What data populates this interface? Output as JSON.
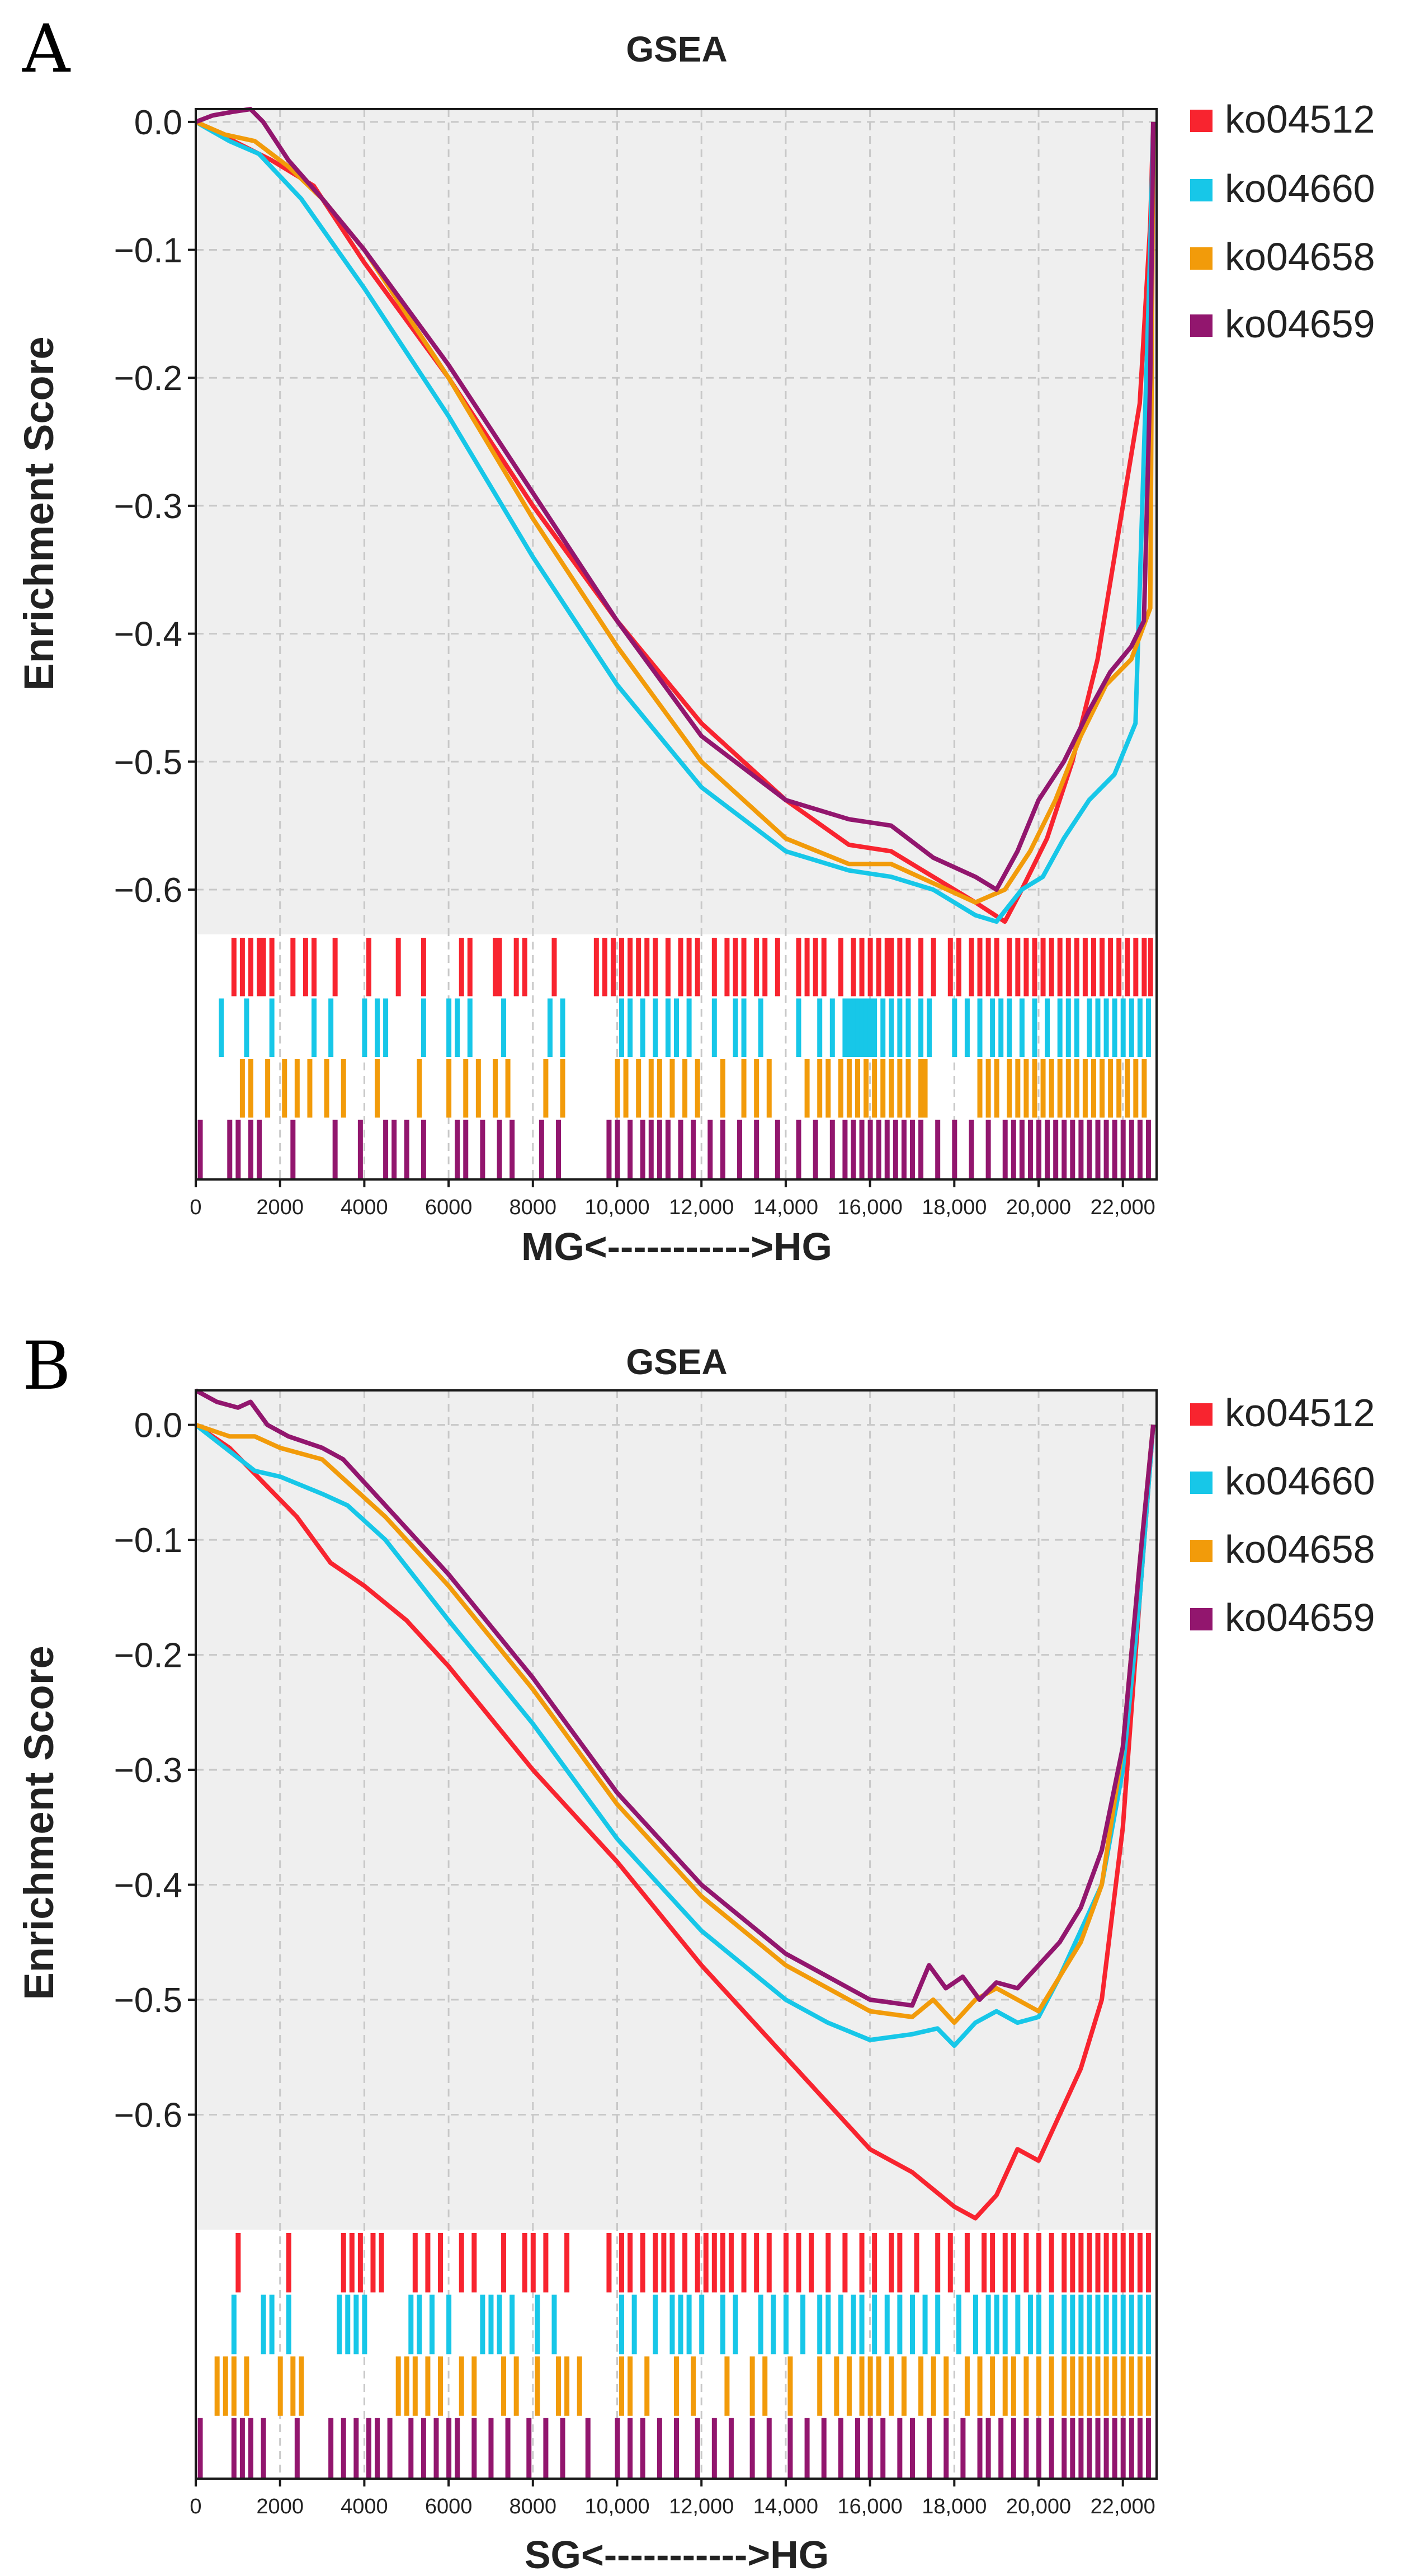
{
  "colors": {
    "ko04512": "#f8242f",
    "ko04660": "#17c7e8",
    "ko04658": "#f29b0a",
    "ko04659": "#92166e",
    "plot_bg": "#efefef",
    "grid": "#c8c8c8"
  },
  "chart_data": [
    {
      "type": "line",
      "panel_label": "A",
      "title": "GSEA",
      "xlabel": "MG<----------->HG",
      "ylabel": "Enrichment Score",
      "xlim": [
        0,
        22800
      ],
      "ylim": [
        -0.635,
        0.01
      ],
      "grid": true,
      "legend_position": "right",
      "x_ticks": [
        0,
        2000,
        4000,
        6000,
        8000,
        10000,
        12000,
        14000,
        16000,
        18000,
        20000,
        22000
      ],
      "x_tick_labels": [
        "0",
        "2000",
        "4000",
        "6000",
        "8000",
        "10,000",
        "12,000",
        "14,000",
        "16,000",
        "18,000",
        "20,000",
        "22,000"
      ],
      "y_ticks": [
        0.0,
        -0.1,
        -0.2,
        -0.3,
        -0.4,
        -0.5,
        -0.6
      ],
      "y_tick_labels": [
        "0.0",
        "−0.1",
        "−0.2",
        "−0.3",
        "−0.4",
        "−0.5",
        "−0.6"
      ],
      "series": [
        {
          "name": "ko04512",
          "x": [
            0,
            600,
            1200,
            1800,
            2800,
            4000,
            6000,
            8000,
            10000,
            12000,
            14000,
            15500,
            16500,
            17500,
            18500,
            19200,
            19600,
            20200,
            20800,
            21400,
            21900,
            22400,
            22650,
            22720
          ],
          "y": [
            0.0,
            -0.01,
            -0.02,
            -0.03,
            -0.05,
            -0.11,
            -0.2,
            -0.3,
            -0.39,
            -0.47,
            -0.53,
            -0.565,
            -0.57,
            -0.59,
            -0.61,
            -0.625,
            -0.6,
            -0.56,
            -0.5,
            -0.42,
            -0.32,
            -0.22,
            -0.08,
            0.0
          ]
        },
        {
          "name": "ko04660",
          "x": [
            0,
            800,
            1500,
            2500,
            4000,
            6000,
            8000,
            10000,
            12000,
            14000,
            15500,
            16500,
            17500,
            18500,
            19000,
            19600,
            20100,
            20600,
            21200,
            21800,
            22300,
            22650,
            22720
          ],
          "y": [
            0.0,
            -0.015,
            -0.025,
            -0.06,
            -0.13,
            -0.23,
            -0.34,
            -0.44,
            -0.52,
            -0.57,
            -0.585,
            -0.59,
            -0.6,
            -0.62,
            -0.625,
            -0.6,
            -0.59,
            -0.56,
            -0.53,
            -0.51,
            -0.47,
            -0.1,
            0.0
          ]
        },
        {
          "name": "ko04658",
          "x": [
            0,
            700,
            1400,
            2200,
            3000,
            4000,
            6000,
            8000,
            10000,
            12000,
            14000,
            15500,
            16500,
            17500,
            18500,
            19200,
            19800,
            20400,
            21000,
            21600,
            22200,
            22650,
            22720
          ],
          "y": [
            0.0,
            -0.01,
            -0.015,
            -0.035,
            -0.06,
            -0.1,
            -0.2,
            -0.31,
            -0.41,
            -0.5,
            -0.56,
            -0.58,
            -0.58,
            -0.595,
            -0.61,
            -0.6,
            -0.57,
            -0.53,
            -0.48,
            -0.44,
            -0.42,
            -0.38,
            0.0
          ]
        },
        {
          "name": "ko04659",
          "x": [
            0,
            400,
            900,
            1300,
            1600,
            2200,
            3000,
            4000,
            6000,
            8000,
            10000,
            12000,
            14000,
            15500,
            16500,
            17500,
            18500,
            19000,
            19500,
            20000,
            20600,
            21200,
            21700,
            22200,
            22500,
            22650,
            22720
          ],
          "y": [
            0.0,
            0.005,
            0.008,
            0.01,
            0.0,
            -0.03,
            -0.06,
            -0.1,
            -0.19,
            -0.29,
            -0.39,
            -0.48,
            -0.53,
            -0.545,
            -0.55,
            -0.575,
            -0.59,
            -0.6,
            -0.57,
            -0.53,
            -0.5,
            -0.46,
            -0.43,
            -0.41,
            -0.39,
            -0.2,
            0.0
          ]
        }
      ],
      "hit_markers": {
        "ko04512": [
          900,
          1100,
          1300,
          1500,
          1600,
          1800,
          2300,
          2600,
          2800,
          3300,
          4100,
          4800,
          5400,
          6300,
          6500,
          7100,
          7200,
          7600,
          7800,
          8500,
          9500,
          9700,
          9900,
          10100,
          10300,
          10500,
          10700,
          10900,
          11200,
          11500,
          11700,
          11900,
          12300,
          12600,
          12800,
          13000,
          13300,
          13500,
          13800,
          14300,
          14500,
          14700,
          14900,
          15300,
          15600,
          15800,
          16000,
          16200,
          16400,
          16500,
          16700,
          16900,
          17200,
          17500,
          17900,
          18100,
          18400,
          18600,
          18800,
          19000,
          19300,
          19500,
          19700,
          19900,
          20100,
          20300,
          20500,
          20700,
          20900,
          21100,
          21300,
          21500,
          21700,
          21900,
          22100,
          22300,
          22500,
          22650
        ],
        "ko04660": [
          600,
          1200,
          1800,
          2800,
          3200,
          4000,
          4300,
          4500,
          5400,
          6000,
          6200,
          6500,
          7300,
          8400,
          8700,
          10100,
          10300,
          10600,
          10900,
          11200,
          11400,
          11700,
          12300,
          12800,
          13000,
          13400,
          14300,
          14800,
          15100,
          15400,
          15500,
          15600,
          15700,
          15800,
          15900,
          16000,
          16100,
          16300,
          16500,
          16700,
          16900,
          17200,
          17400,
          18000,
          18300,
          18600,
          18900,
          19100,
          19300,
          19600,
          19900,
          20200,
          20500,
          20700,
          20900,
          21200,
          21400,
          21600,
          21800,
          22000,
          22200,
          22400,
          22600
        ],
        "ko04658": [
          1100,
          1300,
          1700,
          2100,
          2400,
          2700,
          3100,
          3500,
          4300,
          5300,
          6000,
          6400,
          6700,
          7100,
          7400,
          8300,
          8700,
          10000,
          10200,
          10500,
          10800,
          11000,
          11300,
          11600,
          11900,
          12500,
          13000,
          13300,
          13600,
          14500,
          14800,
          15000,
          15300,
          15500,
          15700,
          15900,
          16100,
          16300,
          16500,
          16700,
          16900,
          17200,
          17300,
          18600,
          18800,
          19000,
          19300,
          19500,
          19700,
          19900,
          20100,
          20300,
          20500,
          20700,
          20900,
          21100,
          21300,
          21500,
          21700,
          21900,
          22100,
          22300,
          22500
        ],
        "ko04659": [
          100,
          800,
          1000,
          1300,
          1500,
          2300,
          3300,
          3900,
          4500,
          4700,
          5000,
          5400,
          6200,
          6400,
          6800,
          7200,
          7500,
          8200,
          8600,
          9800,
          10000,
          10300,
          10600,
          10800,
          11000,
          11200,
          11500,
          11800,
          12200,
          12500,
          12900,
          13300,
          13800,
          14300,
          14700,
          15100,
          15400,
          15600,
          15800,
          16000,
          16200,
          16400,
          16600,
          16800,
          17000,
          17200,
          17600,
          18000,
          18400,
          18800,
          19200,
          19400,
          19600,
          19800,
          20000,
          20200,
          20400,
          20600,
          20800,
          21000,
          21200,
          21400,
          21600,
          21800,
          22000,
          22200,
          22400,
          22600
        ]
      }
    },
    {
      "type": "line",
      "panel_label": "B",
      "title": "GSEA",
      "xlabel": "SG<----------->HG",
      "ylabel": "Enrichment Score",
      "xlim": [
        0,
        22800
      ],
      "ylim": [
        -0.7,
        0.03
      ],
      "grid": true,
      "legend_position": "right",
      "x_ticks": [
        0,
        2000,
        4000,
        6000,
        8000,
        10000,
        12000,
        14000,
        16000,
        18000,
        20000,
        22000
      ],
      "x_tick_labels": [
        "0",
        "2000",
        "4000",
        "6000",
        "8000",
        "10,000",
        "12,000",
        "14,000",
        "16,000",
        "18,000",
        "20,000",
        "22,000"
      ],
      "y_ticks": [
        0.0,
        -0.1,
        -0.2,
        -0.3,
        -0.4,
        -0.5,
        -0.6
      ],
      "y_tick_labels": [
        "0.0",
        "−0.1",
        "−0.2",
        "−0.3",
        "−0.4",
        "−0.5",
        "−0.6"
      ],
      "series": [
        {
          "name": "ko04512",
          "x": [
            0,
            800,
            1600,
            2400,
            3200,
            3800,
            4000,
            5000,
            6000,
            8000,
            10000,
            12000,
            14000,
            16000,
            17000,
            18000,
            18500,
            19000,
            19500,
            20000,
            20500,
            21000,
            21500,
            22000,
            22400,
            22720
          ],
          "y": [
            0.0,
            -0.02,
            -0.05,
            -0.08,
            -0.12,
            -0.135,
            -0.14,
            -0.17,
            -0.21,
            -0.3,
            -0.38,
            -0.47,
            -0.55,
            -0.63,
            -0.65,
            -0.68,
            -0.69,
            -0.67,
            -0.63,
            -0.64,
            -0.6,
            -0.56,
            -0.5,
            -0.35,
            -0.15,
            0.0
          ]
        },
        {
          "name": "ko04660",
          "x": [
            0,
            700,
            1400,
            2000,
            3000,
            3600,
            4500,
            6000,
            8000,
            10000,
            12000,
            14000,
            15000,
            16000,
            17000,
            17600,
            18000,
            18500,
            19000,
            19500,
            20000,
            20500,
            21000,
            21500,
            22000,
            22400,
            22720
          ],
          "y": [
            0.0,
            -0.02,
            -0.04,
            -0.045,
            -0.06,
            -0.07,
            -0.1,
            -0.17,
            -0.26,
            -0.36,
            -0.44,
            -0.5,
            -0.52,
            -0.535,
            -0.53,
            -0.525,
            -0.54,
            -0.52,
            -0.51,
            -0.52,
            -0.515,
            -0.48,
            -0.44,
            -0.4,
            -0.3,
            -0.15,
            0.0
          ]
        },
        {
          "name": "ko04658",
          "x": [
            0,
            800,
            1400,
            2000,
            3000,
            3600,
            4500,
            6000,
            8000,
            10000,
            12000,
            14000,
            15000,
            16000,
            17000,
            17500,
            18000,
            18500,
            19000,
            19500,
            20000,
            20500,
            21000,
            21500,
            22000,
            22400,
            22720
          ],
          "y": [
            0.0,
            -0.01,
            -0.01,
            -0.02,
            -0.03,
            -0.05,
            -0.08,
            -0.14,
            -0.23,
            -0.33,
            -0.41,
            -0.47,
            -0.49,
            -0.51,
            -0.515,
            -0.5,
            -0.52,
            -0.5,
            -0.49,
            -0.5,
            -0.51,
            -0.48,
            -0.45,
            -0.4,
            -0.28,
            -0.12,
            0.0
          ]
        },
        {
          "name": "ko04659",
          "x": [
            0,
            500,
            1000,
            1300,
            1700,
            2200,
            3000,
            3500,
            4000,
            6000,
            8000,
            10000,
            12000,
            14000,
            15000,
            16000,
            17000,
            17400,
            17800,
            18200,
            18600,
            19000,
            19500,
            20000,
            20500,
            21000,
            21500,
            22000,
            22400,
            22720
          ],
          "y": [
            0.03,
            0.02,
            0.015,
            0.02,
            0.0,
            -0.01,
            -0.02,
            -0.03,
            -0.05,
            -0.13,
            -0.22,
            -0.32,
            -0.4,
            -0.46,
            -0.48,
            -0.5,
            -0.505,
            -0.47,
            -0.49,
            -0.48,
            -0.5,
            -0.485,
            -0.49,
            -0.47,
            -0.45,
            -0.42,
            -0.37,
            -0.28,
            -0.12,
            0.0
          ]
        }
      ],
      "hit_markers": {
        "ko04512": [
          1000,
          2200,
          3500,
          3700,
          3900,
          4200,
          4400,
          5200,
          5500,
          5800,
          6300,
          6600,
          7300,
          7800,
          8000,
          8300,
          8800,
          9800,
          10100,
          10300,
          10600,
          10900,
          11100,
          11300,
          11600,
          11900,
          12100,
          12300,
          12500,
          12700,
          13000,
          13300,
          13600,
          14000,
          14300,
          14600,
          15000,
          15400,
          15800,
          16100,
          16500,
          16700,
          17100,
          17600,
          17900,
          18300,
          18700,
          18900,
          19200,
          19400,
          19700,
          20000,
          20300,
          20600,
          20800,
          21000,
          21200,
          21400,
          21600,
          21800,
          22000,
          22200,
          22400,
          22600
        ],
        "ko04660": [
          900,
          1600,
          1800,
          2200,
          3400,
          3600,
          3800,
          4000,
          5100,
          5300,
          5600,
          6000,
          6800,
          7000,
          7200,
          7500,
          8100,
          8500,
          10100,
          10400,
          10900,
          11300,
          11500,
          11700,
          12000,
          12500,
          12800,
          13400,
          13700,
          14000,
          14400,
          14800,
          15000,
          15300,
          15600,
          15800,
          16100,
          16400,
          16700,
          17000,
          17300,
          17600,
          18100,
          18500,
          18800,
          19000,
          19200,
          19500,
          19800,
          20000,
          20300,
          20600,
          20800,
          21000,
          21200,
          21400,
          21600,
          21800,
          22000,
          22200,
          22400,
          22600
        ],
        "ko04658": [
          500,
          700,
          900,
          1200,
          2000,
          2300,
          2500,
          4800,
          5000,
          5200,
          5500,
          5800,
          6300,
          6600,
          7300,
          7600,
          8100,
          8600,
          8800,
          9100,
          10100,
          10300,
          10700,
          11400,
          11800,
          12600,
          13200,
          13500,
          14100,
          14800,
          15200,
          15500,
          15800,
          16000,
          16200,
          16500,
          16800,
          17200,
          17500,
          17800,
          18300,
          18600,
          18900,
          19200,
          19400,
          19700,
          20000,
          20300,
          20600,
          20800,
          21000,
          21200,
          21400,
          21600,
          21800,
          22000,
          22200,
          22400,
          22600
        ],
        "ko04659": [
          100,
          900,
          1100,
          1300,
          1600,
          2400,
          3200,
          3500,
          3800,
          4100,
          4300,
          4600,
          5100,
          5400,
          5700,
          6000,
          6200,
          6600,
          7000,
          7400,
          7900,
          8300,
          8700,
          9300,
          10000,
          10300,
          10600,
          11000,
          11400,
          11900,
          12300,
          12700,
          13200,
          13600,
          14100,
          14500,
          14900,
          15300,
          15700,
          16000,
          16300,
          16700,
          17000,
          17400,
          17800,
          18200,
          18600,
          18800,
          19100,
          19400,
          19700,
          20000,
          20300,
          20600,
          20800,
          21000,
          21200,
          21400,
          21600,
          21800,
          22000,
          22200,
          22400,
          22600
        ]
      }
    }
  ]
}
